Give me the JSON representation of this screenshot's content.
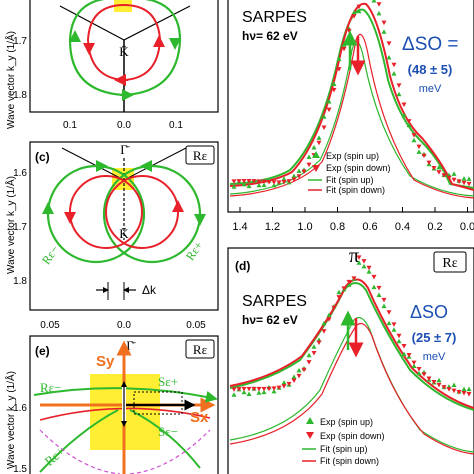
{
  "left": {
    "ylabel": "Wave vector  k_y (1/Å)",
    "panel_a": {
      "yticks": [
        "1.7",
        "1.8"
      ],
      "xticks": [
        "0.1",
        "0.0",
        "0.1"
      ],
      "point_label": "K̄"
    },
    "panel_c": {
      "label": "(c)",
      "tag": "Rε",
      "top_label": "Γ̄",
      "point_label": "K̄",
      "yticks": [
        "1.6",
        "1.7",
        "1.8"
      ],
      "xticks": [
        "0.05",
        "0.0",
        "0.05"
      ],
      "branch_minus": "Rε−",
      "branch_plus": "Rε+",
      "dk_label": "Δk"
    },
    "panel_e": {
      "label": "(e)",
      "tag": "Rε",
      "top_label": "Γ̄",
      "yticks": [
        "1.6",
        "1.5"
      ],
      "sy": "Sy",
      "sx": "Sx",
      "se_plus": "Sε+",
      "se_minus": "Sε−",
      "re_minus": "Rε−",
      "re_plus": "Rε+"
    }
  },
  "right": {
    "panel_b": {
      "title": "SARPES",
      "hv": "hν= 62 eV",
      "delta_label": "ΔSO =",
      "delta_value": "(48 ± 5)",
      "delta_unit": "meV",
      "legend": [
        "Exp (spin up)",
        "Exp (spin down)",
        "Fit (spin up)",
        "Fit (spin down)"
      ],
      "xticks": [
        "1.4",
        "1.2",
        "1.0",
        "0.8",
        "0.6",
        "0.4",
        "0.2",
        "0.0"
      ]
    },
    "panel_d": {
      "label": "(d)",
      "tag": "Rε",
      "peak": "π",
      "title": "SARPES",
      "hv": "hν= 62 eV",
      "delta_label": "ΔSO",
      "delta_value": "(25 ± 7)",
      "delta_unit": "meV",
      "legend": [
        "Exp (spin up)",
        "Exp (spin down)",
        "Fit (spin up)",
        "Fit (spin down)"
      ]
    }
  },
  "colors": {
    "green": "#2eb82e",
    "red": "#e8202a",
    "blue": "#1b4fb3",
    "orange": "#f07020",
    "yellow": "#ffee33",
    "magenta": "#d050d0"
  }
}
